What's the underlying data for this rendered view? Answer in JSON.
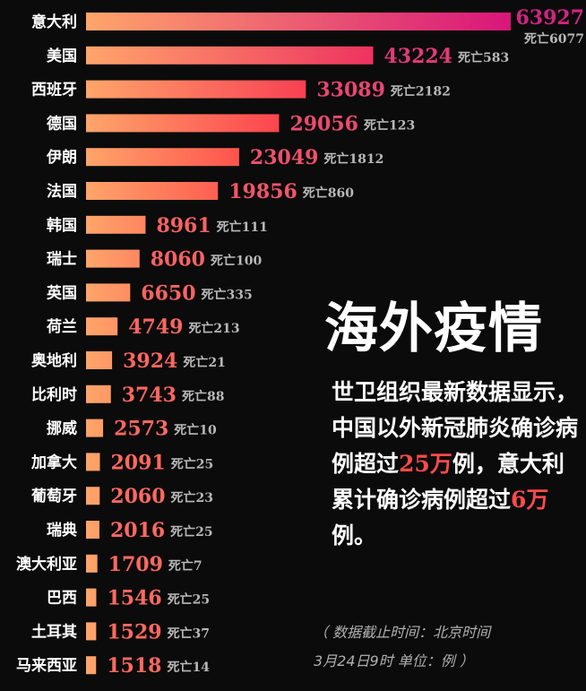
{
  "chart_data": {
    "type": "bar",
    "orientation": "horizontal",
    "title": "海外疫情",
    "categories": [
      "意大利",
      "美国",
      "西班牙",
      "德国",
      "伊朗",
      "法国",
      "韩国",
      "瑞士",
      "英国",
      "荷兰",
      "奥地利",
      "比利时",
      "挪威",
      "加拿大",
      "葡萄牙",
      "瑞典",
      "澳大利亚",
      "巴西",
      "土耳其",
      "马来西亚"
    ],
    "series": [
      {
        "values": [
          63927,
          43224,
          33089,
          29056,
          23049,
          19856,
          8961,
          8060,
          6650,
          4749,
          3924,
          3743,
          2573,
          2091,
          2060,
          2016,
          1709,
          1546,
          1529,
          1518
        ]
      }
    ],
    "deaths": [
      "死亡6077",
      "死亡583",
      "死亡2182",
      "死亡123",
      "死亡1812",
      "死亡860",
      "死亡111",
      "死亡100",
      "死亡335",
      "死亡213",
      "死亡21",
      "死亡88",
      "死亡10",
      "死亡25",
      "死亡23",
      "死亡25",
      "死亡7",
      "死亡25",
      "死亡37",
      "死亡14"
    ],
    "colors": {
      "low": "#ffa56a",
      "mid": "#ff4a4a",
      "high": "#d9157a",
      "label_low": "#ff6b5e",
      "label_high": "#d22482"
    }
  },
  "headline": "海外疫情",
  "paragraph": {
    "p1": "世卫组织最新数据显示，中国以外新冠肺炎确诊病例超过",
    "h1": "25万",
    "p2": "例，意大利累计确诊病例超过",
    "h2": "6万",
    "p3": "例。"
  },
  "note": {
    "line1": "（ 数据截止时间：北京时间",
    "line2": "3月24日9时  单位：例 ）"
  }
}
